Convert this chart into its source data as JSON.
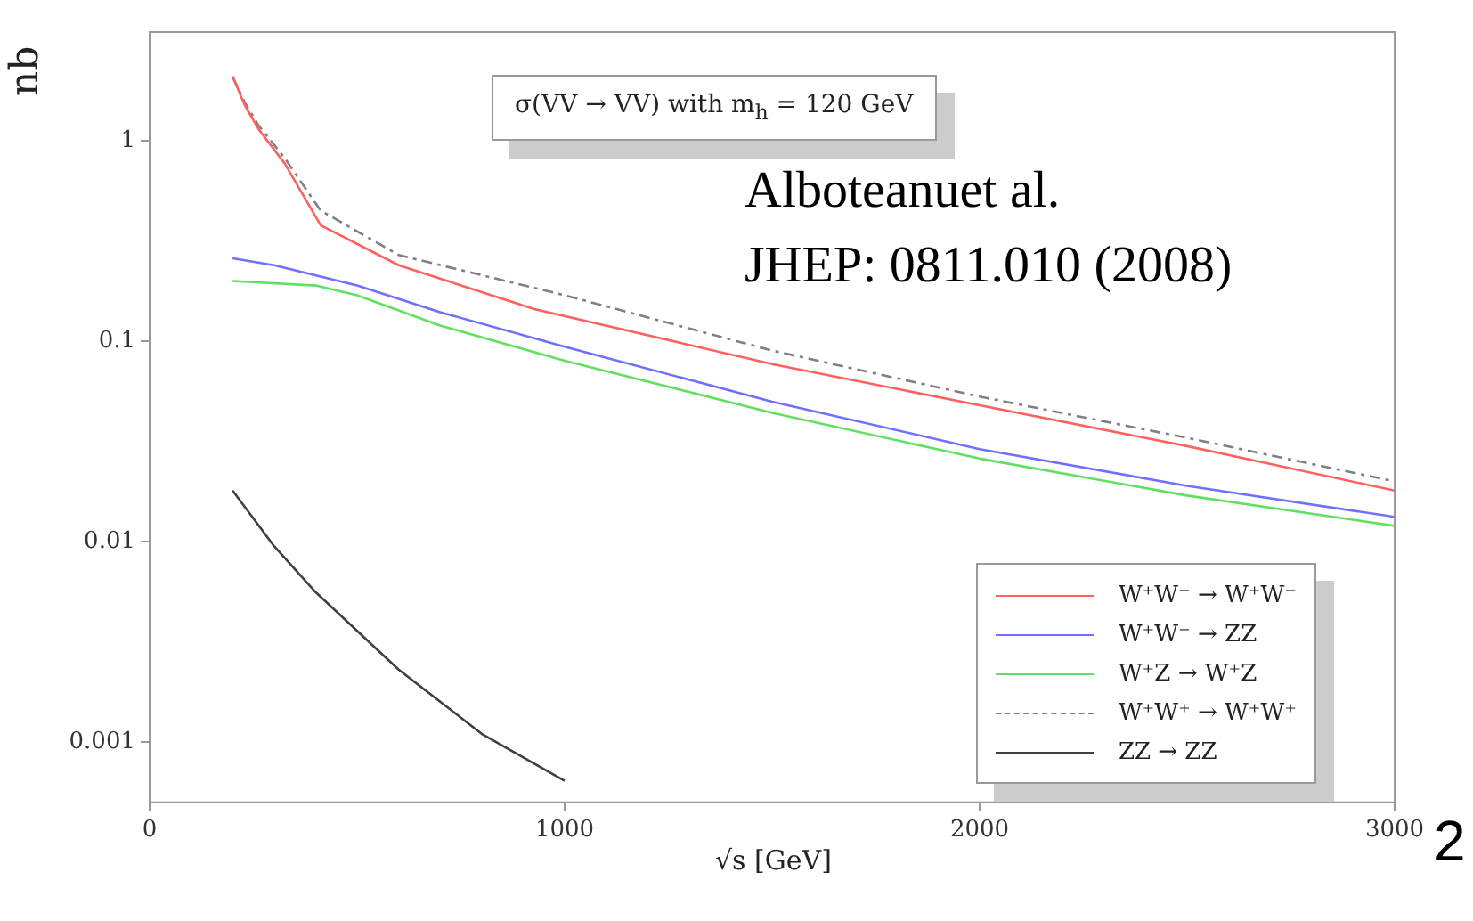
{
  "chart_data": {
    "type": "line",
    "title": "σ(VV → VV) with m$_{h}$ = 120 GeV",
    "xlabel": "√s [GeV]",
    "ylabel": "nb",
    "annotations": [
      "Alboteanuet al.",
      "JHEP: 0811.010 (2008)",
      "2"
    ],
    "xlim": [
      0,
      3000
    ],
    "xticks": [
      0,
      1000,
      2000,
      3000
    ],
    "ylim": [
      0.0005,
      3.5
    ],
    "yticks": [
      0.001,
      0.01,
      0.1,
      1
    ],
    "log": "y",
    "grid": false,
    "legend": "bottom right",
    "marker": "none",
    "series": [
      {
        "name": "W⁺W⁻ → W⁺W⁻",
        "color": "#ff6060",
        "line_style": "solid",
        "x": [
          200,
          230,
          262,
          326,
          412,
          600,
          927,
          1500,
          2000,
          2500,
          3000
        ],
        "values": [
          2.1,
          1.5,
          1.15,
          0.77,
          0.38,
          0.24,
          0.145,
          0.077,
          0.048,
          0.03,
          0.018
        ]
      },
      {
        "name": "W⁺W⁻ → ZZ",
        "color": "#7070ff",
        "line_style": "solid",
        "x": [
          200,
          300,
          500,
          700,
          1000,
          1500,
          2000,
          2500,
          3000
        ],
        "values": [
          0.26,
          0.24,
          0.19,
          0.14,
          0.094,
          0.05,
          0.029,
          0.019,
          0.0133
        ]
      },
      {
        "name": "W⁺Z → W⁺Z",
        "color": "#60e060",
        "line_style": "solid",
        "x": [
          200,
          400,
          500,
          700,
          1000,
          1500,
          2000,
          2500,
          3000
        ],
        "values": [
          0.2,
          0.19,
          0.17,
          0.12,
          0.08,
          0.044,
          0.026,
          0.017,
          0.012
        ]
      },
      {
        "name": "W⁺W⁺ → W⁺W⁺",
        "color": "#808080",
        "line_style": "dashed",
        "x": [
          200,
          230,
          262,
          326,
          412,
          600,
          1000,
          1500,
          2000,
          2500,
          3000
        ],
        "values": [
          2.1,
          1.55,
          1.2,
          0.82,
          0.45,
          0.27,
          0.17,
          0.09,
          0.053,
          0.033,
          0.02
        ]
      },
      {
        "name": "ZZ → ZZ",
        "color": "#404040",
        "line_style": "solid",
        "x": [
          200,
          300,
          400,
          600,
          800,
          1000
        ],
        "values": [
          0.018,
          0.0095,
          0.0056,
          0.0023,
          0.0011,
          0.00064
        ]
      }
    ]
  }
}
